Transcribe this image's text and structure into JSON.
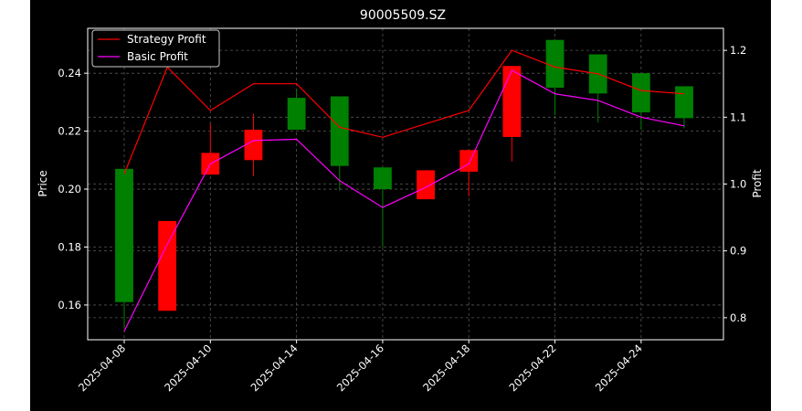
{
  "chart_data": {
    "type": "candlestick",
    "title": "90005509.SZ",
    "xlabel": "",
    "ylabel": "Price",
    "y2label": "Profit",
    "dates": [
      "2025-04-08",
      "2025-04-09",
      "2025-04-10",
      "2025-04-11",
      "2025-04-14",
      "2025-04-15",
      "2025-04-16",
      "2025-04-17",
      "2025-04-18",
      "2025-04-21",
      "2025-04-22",
      "2025-04-23",
      "2025-04-24",
      "2025-04-25"
    ],
    "x_ticks": [
      "2025-04-08",
      "2025-04-10",
      "2025-04-14",
      "2025-04-16",
      "2025-04-18",
      "2025-04-22",
      "2025-04-24"
    ],
    "ylim": [
      0.148,
      0.2555
    ],
    "y_ticks": [
      "0.16",
      "0.18",
      "0.20",
      "0.22",
      "0.24"
    ],
    "y2lim": [
      0.767,
      1.233
    ],
    "y2_ticks": [
      "0.8",
      "0.9",
      "1.0",
      "1.1",
      "1.2"
    ],
    "candles": [
      {
        "date": "2025-04-08",
        "open": 0.207,
        "close": 0.161,
        "high": 0.207,
        "low": 0.152
      },
      {
        "date": "2025-04-09",
        "open": 0.158,
        "close": 0.189,
        "high": 0.189,
        "low": 0.158
      },
      {
        "date": "2025-04-10",
        "open": 0.205,
        "close": 0.2125,
        "high": 0.2225,
        "low": 0.205
      },
      {
        "date": "2025-04-11",
        "open": 0.21,
        "close": 0.2205,
        "high": 0.226,
        "low": 0.2045
      },
      {
        "date": "2025-04-14",
        "open": 0.2315,
        "close": 0.2205,
        "high": 0.2345,
        "low": 0.2205
      },
      {
        "date": "2025-04-15",
        "open": 0.232,
        "close": 0.208,
        "high": 0.232,
        "low": 0.1995
      },
      {
        "date": "2025-04-16",
        "open": 0.2075,
        "close": 0.2,
        "high": 0.2075,
        "low": 0.18
      },
      {
        "date": "2025-04-17",
        "open": 0.1965,
        "close": 0.2065,
        "high": 0.2065,
        "low": 0.1965
      },
      {
        "date": "2025-04-18",
        "open": 0.206,
        "close": 0.2135,
        "high": 0.2135,
        "low": 0.1975
      },
      {
        "date": "2025-04-21",
        "open": 0.218,
        "close": 0.2425,
        "high": 0.2425,
        "low": 0.2095
      },
      {
        "date": "2025-04-22",
        "open": 0.2515,
        "close": 0.235,
        "high": 0.2515,
        "low": 0.2255
      },
      {
        "date": "2025-04-23",
        "open": 0.2465,
        "close": 0.233,
        "high": 0.2465,
        "low": 0.223
      },
      {
        "date": "2025-04-24",
        "open": 0.24,
        "close": 0.2265,
        "high": 0.24,
        "low": 0.2205
      },
      {
        "date": "2025-04-25",
        "open": 0.2355,
        "close": 0.2245,
        "high": 0.2355,
        "low": 0.221
      }
    ],
    "series": [
      {
        "name": "Strategy Profit",
        "color": "#ff0000",
        "values": [
          1.015,
          1.175,
          1.11,
          1.15,
          1.15,
          1.085,
          1.07,
          1.09,
          1.11,
          1.2,
          1.175,
          1.165,
          1.14,
          1.135
        ]
      },
      {
        "name": "Basic Profit",
        "color": "#ff00ff",
        "values": [
          0.78,
          0.91,
          1.03,
          1.065,
          1.067,
          1.005,
          0.965,
          0.995,
          1.03,
          1.17,
          1.135,
          1.125,
          1.1,
          1.087
        ]
      }
    ],
    "colors": {
      "up": "#ff0000",
      "down": "#008000",
      "axis": "#ffffff",
      "grid": "#555555"
    },
    "legend": {
      "position": "top-left",
      "entries": [
        "Strategy Profit",
        "Basic Profit"
      ]
    },
    "grid": true
  }
}
